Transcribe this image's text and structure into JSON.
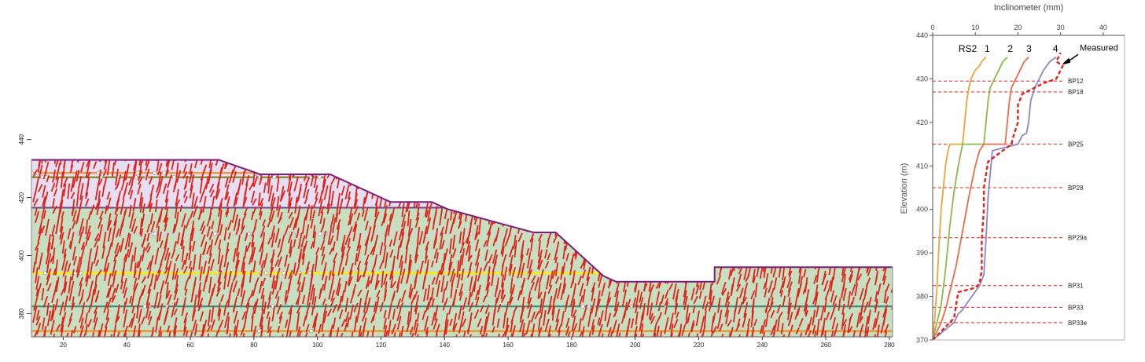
{
  "chart_data": [
    {
      "type": "cross-section",
      "x_ticks": [
        20,
        40,
        60,
        80,
        100,
        120,
        140,
        160,
        180,
        200,
        220,
        240,
        260,
        280
      ],
      "y_ticks": [
        380,
        400,
        420,
        440
      ],
      "xlim": [
        10,
        281
      ],
      "ylim": [
        372,
        441
      ],
      "grid": false,
      "colors": {
        "upper_layer_fill": "#e6def2",
        "lower_layer_fill": "#c5dfc0",
        "outline": "#7a1f7a",
        "cracks": "#e0231c",
        "bedding_orange": "#e8922a",
        "bedding_olive": "#7c8a2a",
        "bedding_yellow": "#f2ee1e",
        "bedding_teal": "#3c8a7a",
        "bedding_grey": "#d4d4d4",
        "interface": "#6a4a8a"
      },
      "surface_profile": {
        "x": [
          10,
          69,
          82,
          104,
          123,
          136,
          141,
          168,
          175,
          190,
          194,
          225,
          225,
          281
        ],
        "y": [
          433,
          433,
          428,
          428,
          418.5,
          418.5,
          416,
          408,
          408,
          393,
          391,
          391,
          396,
          396
        ]
      },
      "interface_elevation": 416.5,
      "bedding_lines": [
        {
          "color": "orange",
          "elevation": 428.5,
          "x_end": 104
        },
        {
          "color": "olive",
          "elevation": 427,
          "x_end": 102
        },
        {
          "color": "grey",
          "elevation": 407.5,
          "x_end": 175
        },
        {
          "color": "yellow",
          "elevation": 394,
          "x_end": 190
        },
        {
          "color": "teal",
          "elevation": 382.5,
          "x_end": 281
        },
        {
          "color": "orange",
          "elevation": 374,
          "x_end": 281
        }
      ]
    },
    {
      "type": "line",
      "title": "Inclinometer (mm)",
      "ylabel": "Elevation (m)",
      "xlim": [
        0,
        45
      ],
      "ylim": [
        370,
        440
      ],
      "x_ticks": [
        0,
        10,
        20,
        30,
        40
      ],
      "y_ticks": [
        370,
        380,
        390,
        400,
        410,
        420,
        430,
        440
      ],
      "curve_labels": [
        "RS2",
        "1",
        "2",
        "3",
        "4"
      ],
      "annotation": "Measured",
      "series": [
        {
          "name": "1",
          "color": "#f0a33a",
          "x": [
            0,
            0.5,
            1,
            1.5,
            2,
            2.5,
            3,
            3.5,
            4,
            7,
            7.5,
            8,
            8.5,
            9,
            10,
            11,
            11.5,
            12.5
          ],
          "y": [
            370,
            375,
            382,
            392,
            400,
            405,
            410,
            413,
            415,
            415,
            420,
            425,
            428,
            430,
            432,
            433,
            434,
            435
          ]
        },
        {
          "name": "2",
          "color": "#8db84a",
          "x": [
            0,
            1,
            2,
            3,
            4,
            5,
            6,
            7,
            12,
            12.5,
            13,
            13.5,
            14.5,
            15.5,
            16.5,
            17.5
          ],
          "y": [
            370,
            374,
            378,
            386,
            396,
            404,
            410,
            415,
            415,
            420,
            425,
            428,
            430,
            432,
            434,
            435
          ]
        },
        {
          "name": "3",
          "color": "#ee6b4a",
          "x": [
            0,
            2,
            3,
            4,
            5.5,
            7,
            8.5,
            10,
            11,
            12,
            17,
            17.5,
            18,
            18.5,
            19.5,
            20.5,
            21.5,
            22.5
          ],
          "y": [
            370,
            374,
            377,
            381,
            387,
            395,
            403,
            410,
            413.5,
            415,
            415,
            420,
            425,
            428,
            430,
            432,
            434,
            435
          ]
        },
        {
          "name": "4",
          "color": "#8c86c8",
          "x": [
            0,
            5,
            6,
            7,
            11,
            12,
            12.5,
            13,
            14,
            20,
            21,
            22,
            22.5,
            23,
            24,
            25,
            26,
            27.5,
            29
          ],
          "y": [
            370,
            374,
            376,
            377,
            382.5,
            385,
            393,
            403,
            413.5,
            415,
            417,
            417.5,
            420,
            425,
            428,
            430,
            432,
            434,
            435
          ]
        },
        {
          "name": "Measured",
          "color": "#e0231c",
          "dashed": true,
          "x": [
            0,
            4,
            5,
            5.5,
            6,
            10,
            11,
            11.5,
            11.5,
            12,
            12,
            13,
            18.5,
            19,
            20,
            20,
            21,
            24,
            26,
            27.5,
            29,
            30.5,
            29,
            30
          ],
          "y": [
            370,
            374,
            375,
            378,
            381,
            382,
            383,
            386,
            393,
            400,
            405,
            411,
            415,
            417,
            420,
            424,
            426.5,
            428,
            429,
            429.5,
            430,
            433,
            434,
            436
          ]
        }
      ],
      "reference_lines": [
        {
          "label": "BP12",
          "elevation": 429.5
        },
        {
          "label": "BP18",
          "elevation": 427
        },
        {
          "label": "BP25",
          "elevation": 415
        },
        {
          "label": "BP28",
          "elevation": 405
        },
        {
          "label": "BP29a",
          "elevation": 393.5
        },
        {
          "label": "BP31",
          "elevation": 382.5
        },
        {
          "label": "BP33",
          "elevation": 377.5
        },
        {
          "label": "BP33e",
          "elevation": 374
        }
      ]
    }
  ]
}
